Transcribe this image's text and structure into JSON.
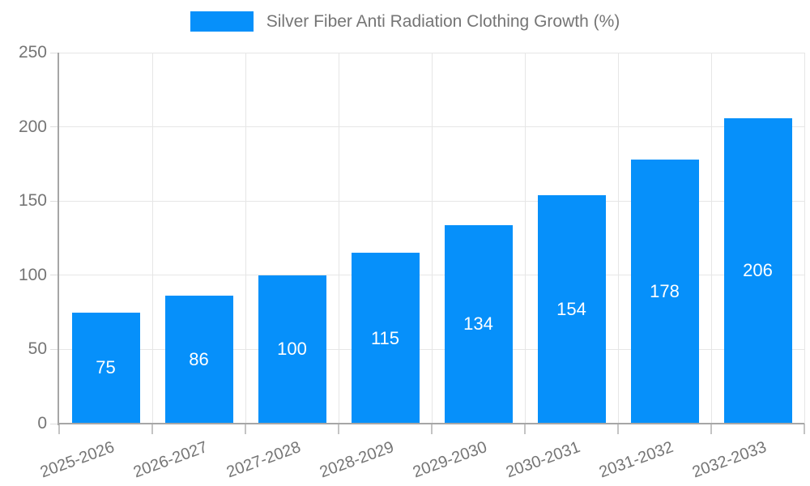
{
  "legend": {
    "label": "Silver Fiber Anti Radiation Clothing Growth (%)"
  },
  "chart_data": {
    "type": "bar",
    "title": "Silver Fiber Anti Radiation Clothing Growth (%)",
    "categories": [
      "2025-2026",
      "2026-2027",
      "2027-2028",
      "2028-2029",
      "2029-2030",
      "2030-2031",
      "2031-2032",
      "2032-2033"
    ],
    "values": [
      75,
      86,
      100,
      115,
      134,
      154,
      178,
      206
    ],
    "xlabel": "",
    "ylabel": "",
    "ylim": [
      0,
      250
    ],
    "yticks": [
      0,
      50,
      100,
      150,
      200,
      250
    ],
    "grid": true,
    "legend_position": "top",
    "bar_color": "#0690fa",
    "value_label_color": "#ffffff",
    "axis_color": "#a6a6a6",
    "grid_color": "#e6e6e6",
    "text_color": "#757575"
  }
}
